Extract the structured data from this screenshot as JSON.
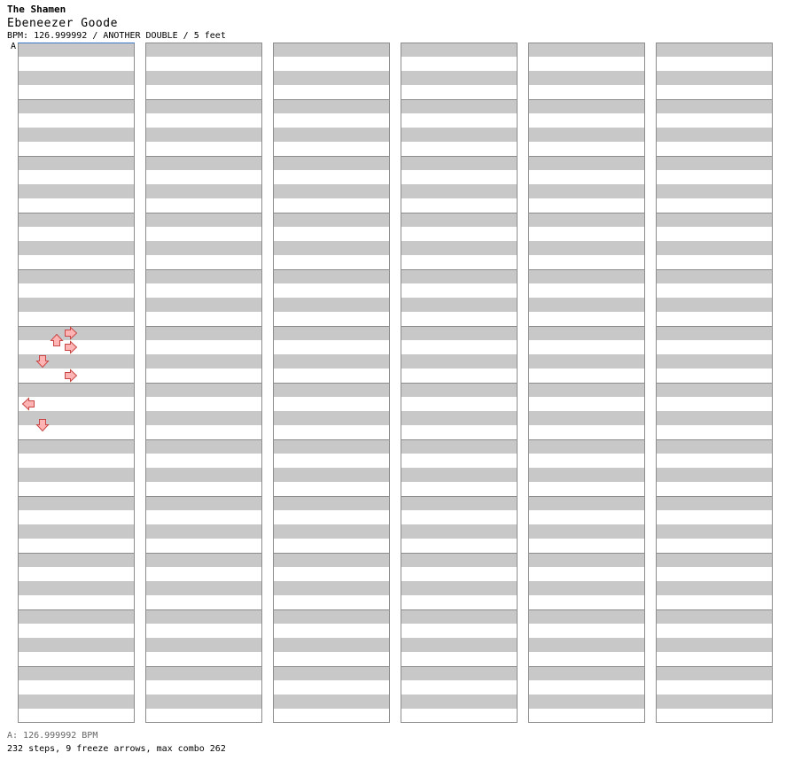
{
  "header": {
    "artist": "The Shamen",
    "title": "Ebeneezer Goode",
    "info": "BPM: 126.999992 / ANOTHER DOUBLE / 5 feet",
    "section_label": "A"
  },
  "footer": {
    "bpm_line": "A: 126.999992 BPM",
    "stats_line": "232 steps, 9 freeze arrows, max combo 262"
  },
  "colors": {
    "note_red": "#ffb4b4",
    "note_red_edge": "#c84646",
    "note_blue": "#8cc8ff",
    "note_blue_edge": "#3c78c8",
    "freeze_fill": "#c8ffc8",
    "freeze_edge": "#3c963c",
    "stripe": "#c8c8c8",
    "border": "#8c8c8c"
  },
  "chart_data": {
    "type": "step-chart",
    "columns": 6,
    "measures_per_column": 12,
    "panels": [
      "left",
      "down",
      "up",
      "right",
      "center"
    ],
    "notes": [
      {
        "measure": 5,
        "beat": 0,
        "panel": "right"
      },
      {
        "measure": 5,
        "beat": 0.5,
        "panel": "up"
      },
      {
        "measure": 5,
        "beat": 1,
        "panel": "right"
      },
      {
        "measure": 5,
        "beat": 2,
        "panel": "down"
      },
      {
        "measure": 5,
        "beat": 3,
        "panel": "right"
      },
      {
        "measure": 6,
        "beat": 1,
        "panel": "left"
      },
      {
        "measure": 6,
        "beat": 2.5,
        "panel": "down"
      }
    ],
    "freezes": []
  }
}
